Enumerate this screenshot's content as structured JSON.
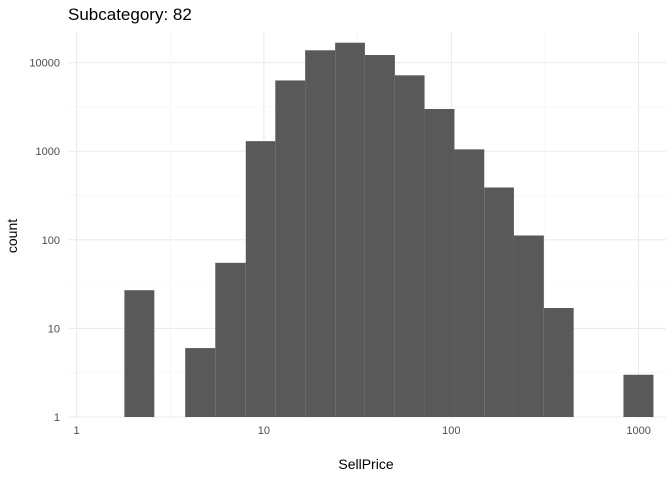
{
  "chart_data": {
    "type": "bar",
    "title": "Subcategory: 82",
    "xlabel": "SellPrice",
    "ylabel": "count",
    "x_scale": "log10",
    "y_scale": "log10",
    "xlim": [
      0.9,
      1400
    ],
    "ylim": [
      1,
      20000
    ],
    "x_ticks": [
      1,
      10,
      100,
      1000
    ],
    "x_tick_labels": [
      "1",
      "10",
      "100",
      "1000"
    ],
    "y_ticks": [
      1,
      10,
      100,
      1000,
      10000
    ],
    "y_tick_labels": [
      "1",
      "10",
      "100",
      "1000",
      "10000"
    ],
    "grid": true,
    "bin_edges": [
      1.8,
      2.6,
      3.8,
      5.5,
      8,
      11.5,
      16.6,
      24,
      34.6,
      50,
      72,
      104,
      150,
      216,
      312,
      450,
      830,
      1200
    ],
    "values": [
      27,
      0,
      6,
      55,
      1300,
      6300,
      13800,
      16800,
      12200,
      7200,
      3000,
      1050,
      390,
      112,
      17,
      0,
      3
    ],
    "bar_color": "#595959"
  }
}
